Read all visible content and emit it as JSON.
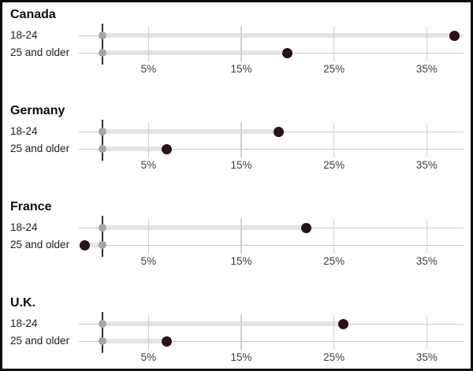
{
  "chart_data": {
    "type": "dumbbell_dot_plot",
    "unit": "percent",
    "x_axis": {
      "range": [
        0,
        40
      ],
      "tick_labels": [
        "5%",
        "15%",
        "25%",
        "35%"
      ],
      "tick_values": [
        5,
        15,
        25,
        35
      ],
      "grid": true
    },
    "row_group_labels": [
      "18-24",
      "25 and older"
    ],
    "countries": [
      {
        "name": "Canada",
        "rows": [
          {
            "label": "18-24",
            "gray": 0,
            "dark": 38
          },
          {
            "label": "25 and older",
            "gray": 0,
            "dark": 20
          }
        ]
      },
      {
        "name": "Germany",
        "rows": [
          {
            "label": "18-24",
            "gray": 0,
            "dark": 19
          },
          {
            "label": "25 and older",
            "gray": 0,
            "dark": 7
          }
        ]
      },
      {
        "name": "France",
        "rows": [
          {
            "label": "18-24",
            "gray": 0,
            "dark": 22
          },
          {
            "label": "25 and older",
            "gray": 0,
            "dark": 0
          }
        ]
      },
      {
        "name": "U.K.",
        "rows": [
          {
            "label": "18-24",
            "gray": 0,
            "dark": 26
          },
          {
            "label": "25 and older",
            "gray": 0,
            "dark": 7
          }
        ]
      }
    ],
    "colors": {
      "dark_dot": "#2b1216",
      "gray_dot": "#a6a4a4",
      "band": "#e4e2e2",
      "row_line": "#c9c6c6",
      "gridline": "#d2cfcf",
      "zero_tick": "#2e2e2e",
      "title_text": "#0d0d0d",
      "label_text": "#1c1c1c",
      "tick_text": "#3e3e3e",
      "frame_border": "#0a0a0a",
      "background": "#ffffff"
    }
  }
}
